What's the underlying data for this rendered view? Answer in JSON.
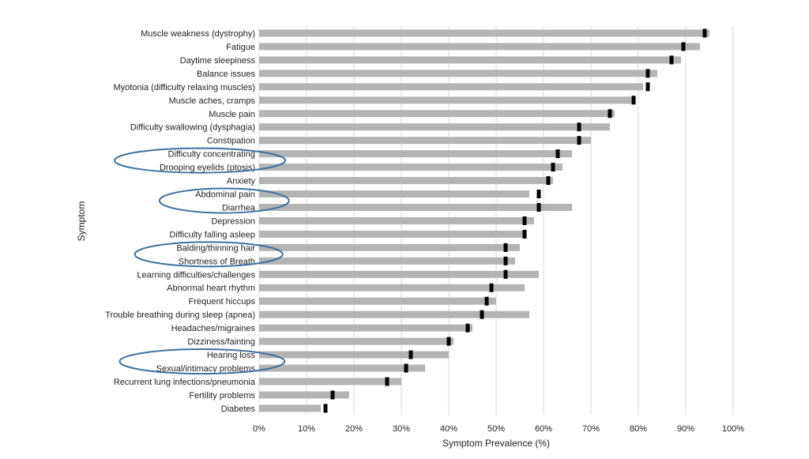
{
  "chart_data": {
    "type": "bar",
    "orientation": "horizontal",
    "xlabel": "Symptom Prevalence (%)",
    "ylabel": "Symptom",
    "xlim": [
      0,
      100
    ],
    "x_ticks": [
      "0%",
      "10%",
      "20%",
      "30%",
      "40%",
      "50%",
      "60%",
      "70%",
      "80%",
      "90%",
      "100%"
    ],
    "x_tick_values": [
      0,
      10,
      20,
      30,
      40,
      50,
      60,
      70,
      80,
      90,
      100
    ],
    "grid": "vertical",
    "categories": [
      "Muscle weakness (dystrophy)",
      "Fatigue",
      "Daytime sleepiness",
      "Balance issues",
      "Myotonia (difficulty relaxing muscles)",
      "Muscle aches, cramps",
      "Muscle pain",
      "Difficulty swallowing (dysphagia)",
      "Constipation",
      "Difficulty concentrating",
      "Drooping eyelids (ptosis)",
      "Anxiety",
      "Abdominal pain",
      "Diarrhea",
      "Depression",
      "Difficulty falling asleep",
      "Balding/thinning hair",
      "Shortness of Breath",
      "Learning difficulties/challenges",
      "Abnormal heart rhythm",
      "Frequent hiccups",
      "Trouble breathing during sleep (apnea)",
      "Headaches/migraines",
      "Dizziness/fainting",
      "Hearing loss",
      "Sexual/intimacy problems",
      "Recurrent lung infections/pneumonia",
      "Fertility problems",
      "Diabetes"
    ],
    "series": [
      {
        "values": [
          95,
          93,
          89,
          84,
          81,
          79,
          75,
          74,
          70,
          66,
          64,
          62,
          57,
          66,
          58,
          56,
          55,
          54,
          59,
          56,
          50,
          57,
          45,
          41,
          40,
          35,
          30,
          19,
          13
        ]
      },
      {
        "values": [
          94,
          89.5,
          87,
          82,
          82,
          79,
          74,
          67.5,
          67.5,
          63,
          62,
          61,
          59,
          59,
          56,
          56,
          52,
          52,
          52,
          49,
          48,
          47,
          44,
          40,
          32,
          31,
          27,
          15.5,
          14
        ]
      }
    ],
    "highlighted_groups": [
      [
        "Difficulty concentrating",
        "Drooping eyelids (ptosis)"
      ],
      [
        "Abdominal pain",
        "Diarrhea"
      ],
      [
        "Balding/thinning hair",
        "Shortness of Breath"
      ],
      [
        "Hearing loss",
        "Sexual/intimacy problems"
      ]
    ],
    "colors": {
      "bar": "#b4b4b4",
      "marker": "#000000",
      "grid": "#d9d9d9",
      "ellipse": "#41719c"
    }
  }
}
